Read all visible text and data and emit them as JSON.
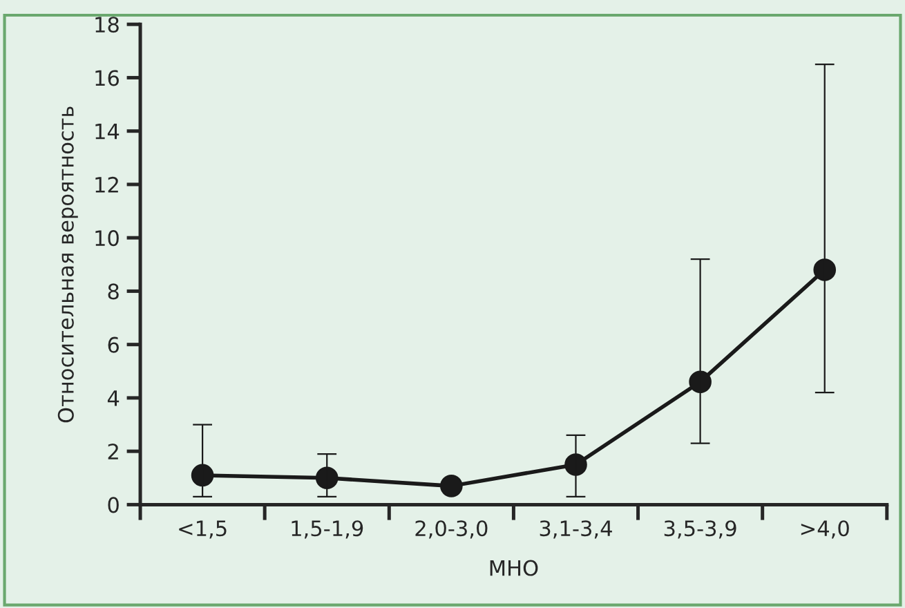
{
  "chart_data": {
    "type": "line",
    "xlabel": "МНО",
    "ylabel": "Относительная вероятность",
    "categories": [
      "<1,5",
      "1,5-1,9",
      "2,0-3,0",
      "3,1-3,4",
      "3,5-3,9",
      ">4,0"
    ],
    "series": [
      {
        "color": "#1a1a1a",
        "values": [
          1.1,
          1.0,
          0.7,
          1.5,
          4.6,
          8.8
        ],
        "errors": [
          [
            0.3,
            3.0
          ],
          [
            0.3,
            1.9
          ],
          null,
          [
            0.3,
            2.6
          ],
          [
            2.3,
            9.2
          ],
          [
            4.2,
            16.5
          ]
        ]
      }
    ],
    "ylim": [
      0,
      18
    ],
    "yticks": [
      0,
      2,
      4,
      6,
      8,
      10,
      12,
      14,
      16,
      18
    ],
    "marker": "circle",
    "line_style": "solid"
  }
}
